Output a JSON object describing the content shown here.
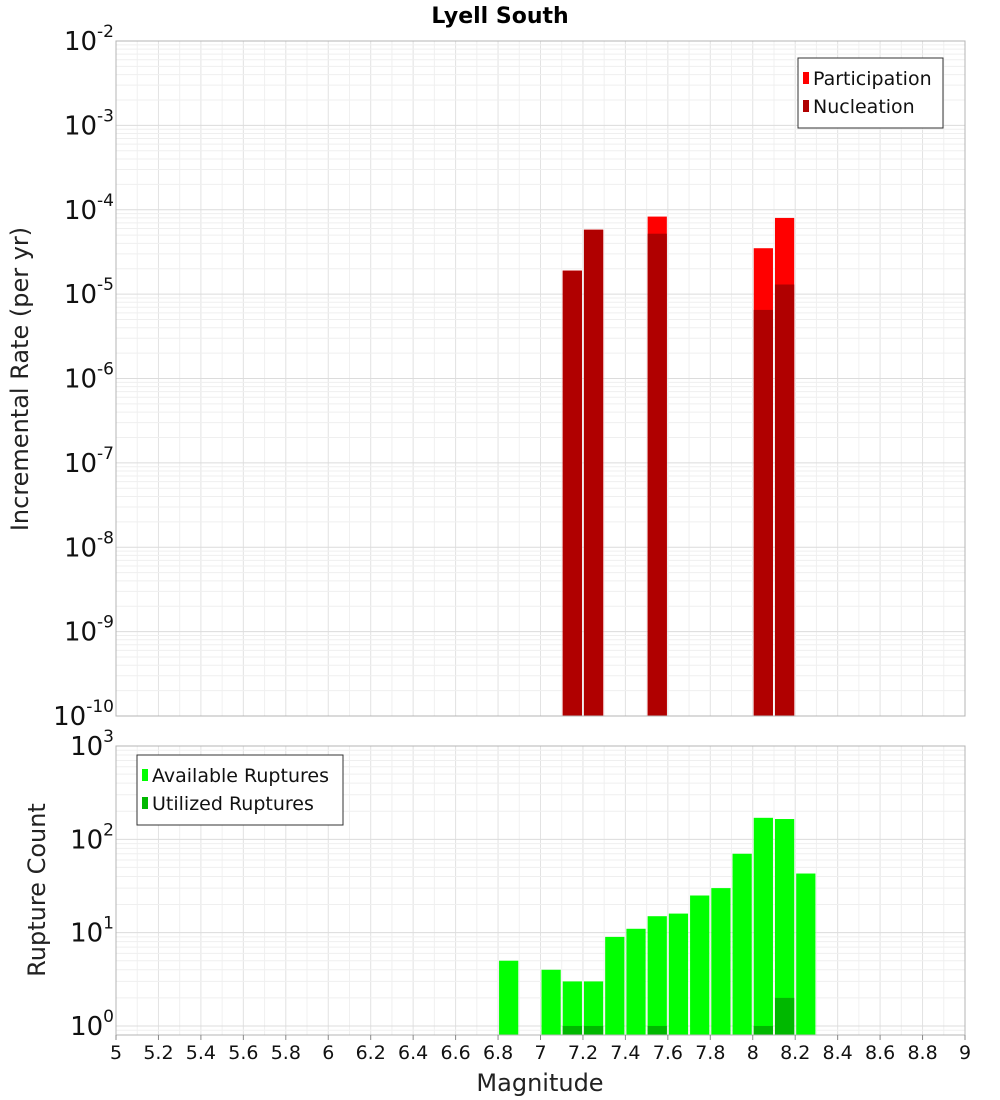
{
  "chart_data": [
    {
      "type": "bar",
      "title": "Lyell South",
      "xlabel": "Magnitude",
      "ylabel": "Incremental Rate (per yr)",
      "yscale": "log",
      "xlim": [
        5,
        9
      ],
      "ylim": [
        1e-10,
        0.01
      ],
      "ytick_exponents": [
        "-2",
        "-3",
        "-4",
        "-5",
        "-6",
        "-7",
        "-8",
        "-9",
        "-10"
      ],
      "legend": {
        "position": "top-right",
        "entries": [
          "Participation",
          "Nucleation"
        ]
      },
      "colors": {
        "Participation": "#ff0000",
        "Nucleation": "#b00000"
      },
      "series": [
        {
          "name": "Participation",
          "x": [
            7.15,
            7.25,
            7.55,
            8.05,
            8.15
          ],
          "values": [
            1.9e-05,
            5.8e-05,
            8.3e-05,
            3.5e-05,
            8e-05
          ]
        },
        {
          "name": "Nucleation",
          "x": [
            7.15,
            7.25,
            7.55,
            8.05,
            8.15
          ],
          "values": [
            1.9e-05,
            5.8e-05,
            5.2e-05,
            6.5e-06,
            1.3e-05
          ]
        }
      ]
    },
    {
      "type": "bar",
      "xlabel": "Magnitude",
      "ylabel": "Rupture Count",
      "yscale": "log",
      "xlim": [
        5,
        9
      ],
      "ylim": [
        0.8,
        1000
      ],
      "ytick_exponents": [
        "3",
        "2",
        "1",
        "0"
      ],
      "xticks": [
        "5",
        "5.2",
        "5.4",
        "5.6",
        "5.8",
        "6",
        "6.2",
        "6.4",
        "6.6",
        "6.8",
        "7",
        "7.2",
        "7.4",
        "7.6",
        "7.8",
        "8",
        "8.2",
        "8.4",
        "8.6",
        "8.8",
        "9"
      ],
      "legend": {
        "position": "top-left",
        "entries": [
          "Available Ruptures",
          "Utilized Ruptures"
        ]
      },
      "colors": {
        "Available Ruptures": "#00ff00",
        "Utilized Ruptures": "#00b800"
      },
      "series": [
        {
          "name": "Available Ruptures",
          "x": [
            6.85,
            7.05,
            7.15,
            7.25,
            7.35,
            7.45,
            7.55,
            7.65,
            7.75,
            7.85,
            7.95,
            8.05,
            8.15,
            8.25
          ],
          "values": [
            5,
            4,
            3,
            3,
            9,
            11,
            15,
            16,
            25,
            30,
            70,
            170,
            165,
            43
          ]
        },
        {
          "name": "Utilized Ruptures",
          "x": [
            7.15,
            7.25,
            7.55,
            8.05,
            8.15
          ],
          "values": [
            1,
            1,
            1,
            1,
            2
          ]
        }
      ]
    }
  ]
}
